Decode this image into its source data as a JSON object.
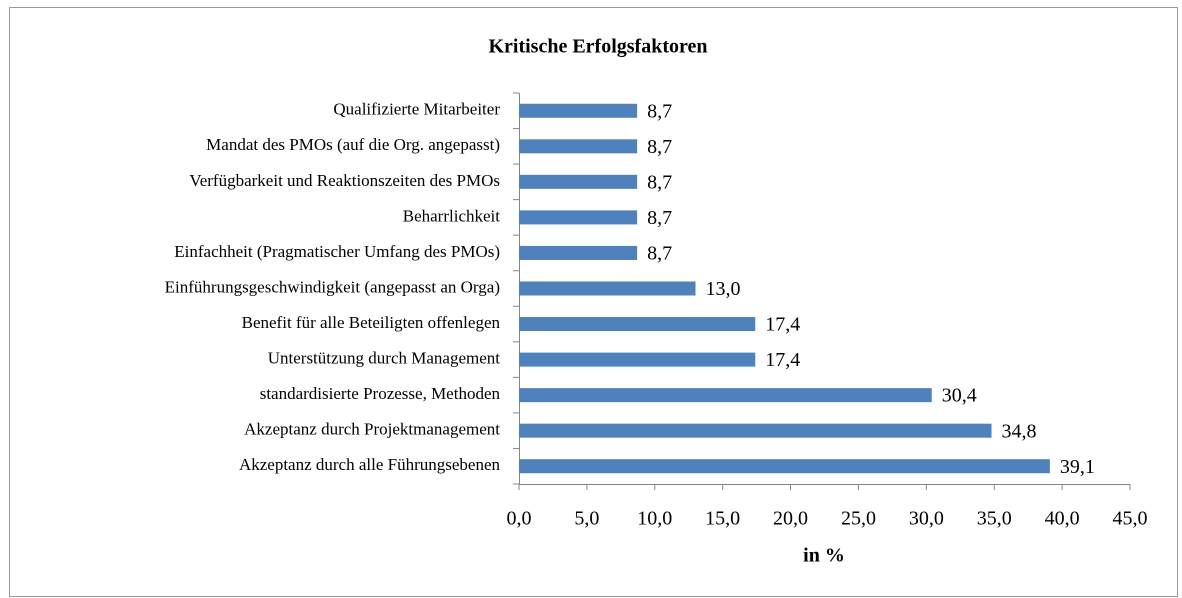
{
  "chart_data": {
    "type": "bar",
    "orientation": "horizontal",
    "title": "Kritische Erfolgsfaktoren",
    "x_label": "in %",
    "categories": [
      "Qualifizierte Mitarbeiter",
      "Mandat des PMOs (auf die Org. angepasst)",
      "Verfügbarkeit und Reaktionszeiten des PMOs",
      "Beharrlichkeit",
      "Einfachheit (Pragmatischer Umfang des PMOs)",
      "Einführungsgeschwindigkeit (angepasst an Orga)",
      "Benefit für alle Beteiligten offenlegen",
      "Unterstützung durch Management",
      "standardisierte Prozesse, Methoden",
      "Akzeptanz durch Projektmanagement",
      "Akzeptanz durch alle Führungsebenen"
    ],
    "values": [
      8.7,
      8.7,
      8.7,
      8.7,
      8.7,
      13.0,
      17.4,
      17.4,
      30.4,
      34.8,
      39.1
    ],
    "value_labels": [
      "8,7",
      "8,7",
      "8,7",
      "8,7",
      "8,7",
      "13,0",
      "17,4",
      "17,4",
      "30,4",
      "34,8",
      "39,1"
    ],
    "color": "#4f81bd",
    "xlim": [
      0,
      45
    ],
    "xticks": [
      {
        "value": 0,
        "label": "0,0"
      },
      {
        "value": 5,
        "label": "5,0"
      },
      {
        "value": 10,
        "label": "10,0"
      },
      {
        "value": 15,
        "label": "15,0"
      },
      {
        "value": 20,
        "label": "20,0"
      },
      {
        "value": 25,
        "label": "25,0"
      },
      {
        "value": 30,
        "label": "30,0"
      },
      {
        "value": 35,
        "label": "35,0"
      },
      {
        "value": 40,
        "label": "40,0"
      },
      {
        "value": 45,
        "label": "45,0"
      }
    ]
  }
}
